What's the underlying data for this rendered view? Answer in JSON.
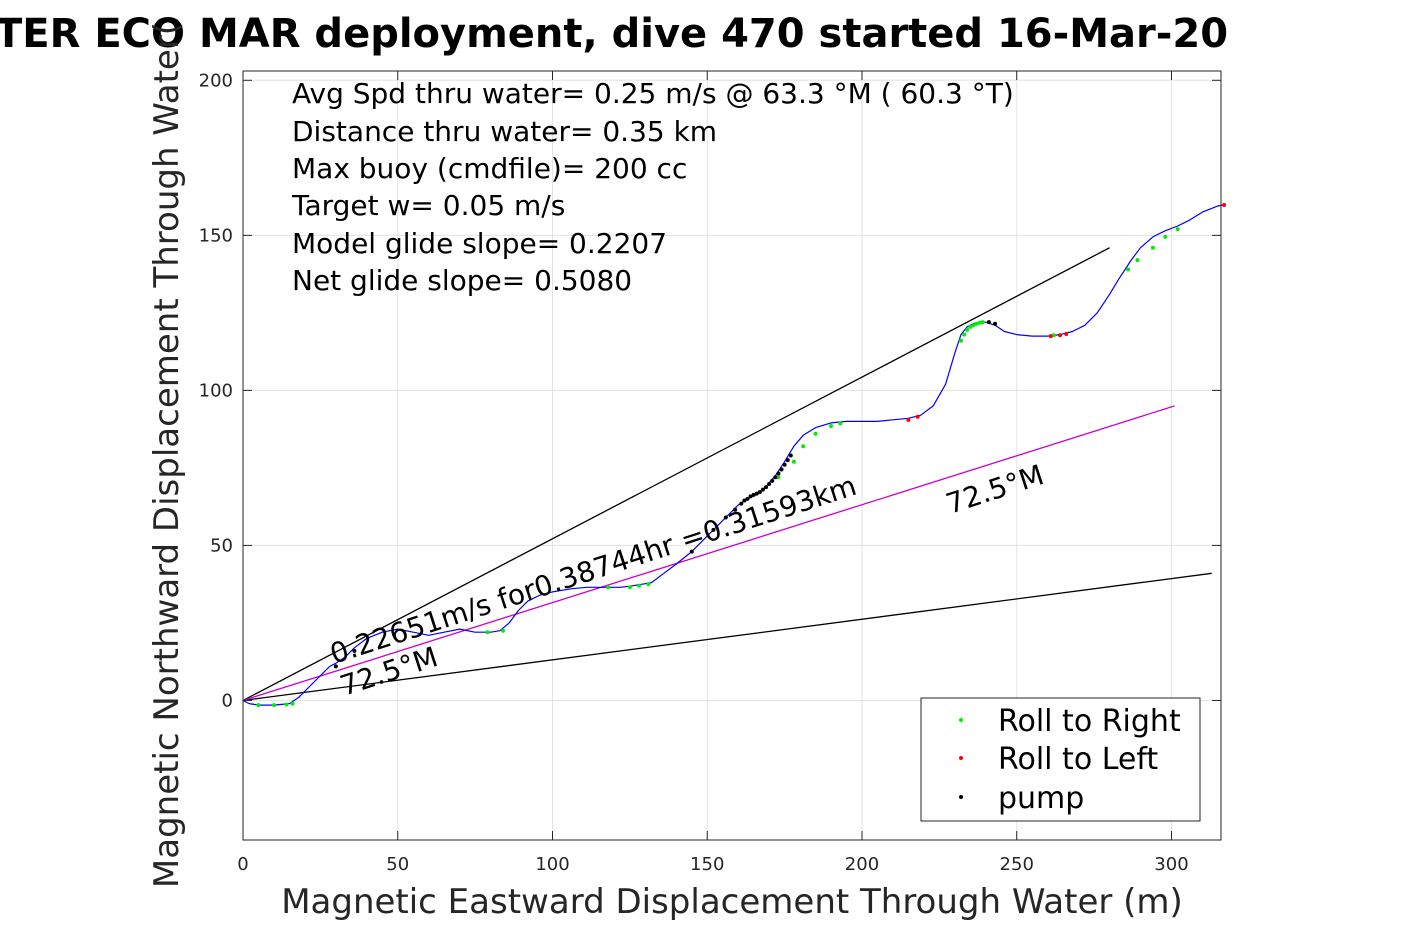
{
  "chart_data": {
    "type": "line",
    "title": "TER ECO MAR deployment, dive 470 started 16-Mar-20",
    "xlabel": "Magnetic Eastward Displacement Through Water (m)",
    "ylabel": "Magnetic Northward Displacement Through Water(",
    "xlim": [
      0,
      316
    ],
    "ylim": [
      -45,
      203
    ],
    "xticks": [
      0,
      50,
      100,
      150,
      200,
      250,
      300
    ],
    "yticks": [
      0,
      50,
      100,
      150,
      200
    ],
    "grid": true,
    "info_lines": [
      "Avg Spd thru water=  0.25 m/s @  63.3 °M ( 60.3 °T)",
      "Distance thru water=  0.35 km",
      "Max buoy (cmdfile)= 200 cc",
      "Target w= 0.05 m/s",
      "Model glide slope= 0.2207",
      "Net glide slope= 0.5080"
    ],
    "annotations": {
      "speed": "0.22651m/s for0.38744hr =0.31593km",
      "heading_lower": "72.5°M",
      "heading_upper": "72.5°M"
    },
    "legend": {
      "position": "bottom-right",
      "entries": [
        {
          "label": "Roll to Right",
          "color": "#00ee00"
        },
        {
          "label": "Roll to Left",
          "color": "#ff0000"
        },
        {
          "label": "pump",
          "color": "#000000"
        }
      ]
    },
    "colors": {
      "track": "#0000ff",
      "heading_line": "#cc00cc",
      "cone_lines": "#000000",
      "roll_right": "#00ee00",
      "roll_left": "#ff0000",
      "pump": "#000000"
    },
    "track": {
      "x": [
        0,
        2,
        5,
        10,
        15,
        18,
        21,
        25,
        28,
        30,
        33,
        36,
        40,
        45,
        50,
        55,
        60,
        65,
        70,
        75,
        80,
        83,
        86,
        89,
        92,
        96,
        100,
        106,
        111,
        116,
        122,
        126,
        129,
        132,
        136,
        140,
        145,
        150,
        155,
        160,
        163,
        166,
        169,
        172,
        175,
        178,
        181,
        185,
        190,
        195,
        200,
        205,
        210,
        215,
        219,
        223,
        227,
        230,
        232,
        234,
        236,
        238,
        240,
        243,
        246,
        250,
        255,
        260,
        264,
        268,
        272,
        276,
        280,
        283,
        285,
        287,
        290,
        294,
        298,
        302,
        306,
        310,
        315,
        317
      ],
      "y": [
        0,
        -1,
        -1.5,
        -1.5,
        -1,
        1,
        4,
        8,
        11,
        12,
        14,
        17,
        20,
        22,
        23,
        22,
        21,
        22,
        23,
        22,
        22,
        22.5,
        25,
        29,
        32,
        34,
        35,
        36,
        36.5,
        36.5,
        36.5,
        37,
        37.5,
        38,
        41,
        44,
        48,
        53,
        58,
        63,
        65,
        66.5,
        69,
        72.5,
        77,
        82,
        85.5,
        88,
        89.5,
        90,
        90,
        90,
        90.5,
        91,
        92,
        95,
        102,
        112,
        118,
        120.5,
        121.5,
        122,
        122,
        121,
        119,
        118,
        117.5,
        117.5,
        118,
        119,
        121,
        125,
        131,
        136,
        139,
        142,
        146,
        149.5,
        151.5,
        153,
        155,
        157.5,
        159.5,
        159.8
      ]
    },
    "roll_right_points": {
      "x": [
        5,
        10,
        14,
        16,
        79,
        84,
        118,
        125,
        128,
        131,
        173,
        178,
        181,
        185,
        190,
        193,
        232,
        233,
        234,
        235,
        236,
        237,
        238,
        239,
        262,
        286,
        289,
        294,
        298,
        302
      ],
      "y": [
        -1.5,
        -1.5,
        -1.3,
        -1,
        22,
        22.5,
        36.5,
        36.5,
        37,
        37.5,
        72,
        77,
        82,
        86,
        88.5,
        89.3,
        116,
        118,
        119.5,
        120.5,
        121,
        121.5,
        121.8,
        122,
        117.8,
        139,
        142,
        146,
        149.5,
        152
      ]
    },
    "roll_left_points": {
      "x": [
        215,
        218,
        261,
        264,
        266,
        317
      ],
      "y": [
        90.5,
        91.5,
        117.5,
        117.8,
        118.2,
        159.8
      ]
    },
    "pump_points": {
      "x": [
        30,
        36,
        145,
        152,
        156,
        159,
        161,
        162,
        163,
        164,
        165,
        166,
        167,
        168,
        169,
        170,
        171,
        172,
        173,
        174,
        175,
        176,
        177,
        241,
        243
      ],
      "y": [
        11,
        16,
        48,
        55,
        59,
        61.5,
        63.5,
        64.5,
        65,
        65.8,
        66.3,
        66.7,
        67.2,
        68,
        68.8,
        69.8,
        70.8,
        72,
        73.2,
        74.5,
        76,
        77.5,
        79,
        122,
        121.5
      ]
    },
    "heading_line": {
      "x": [
        0,
        301
      ],
      "y": [
        0,
        95
      ]
    },
    "cone_upper": {
      "x": [
        0,
        280
      ],
      "y": [
        0,
        146
      ]
    },
    "cone_lower": {
      "x": [
        0,
        313
      ],
      "y": [
        0,
        41
      ]
    }
  }
}
